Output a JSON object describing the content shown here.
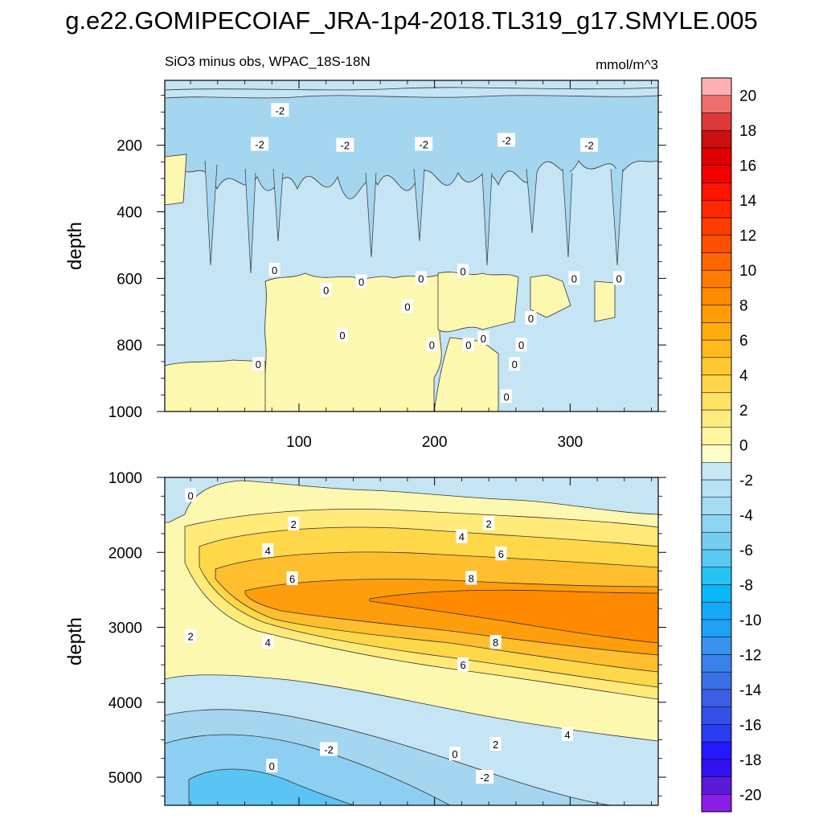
{
  "figure": {
    "title": "g.e22.GOMIPECOIAF_JRA-1p4-2018.TL319_g17.SMYLE.005",
    "left_subtitle": "SiO3 minus obs, WPAC_18S-18N",
    "right_subtitle": "mmol/m^3"
  },
  "chart_data": [
    {
      "type": "heatmap",
      "panel": "upper",
      "title": "SiO3 minus obs, WPAC_18S-18N",
      "units": "mmol/m^3",
      "xlabel": "",
      "ylabel": "depth",
      "xlim": [
        1,
        365
      ],
      "ylim": [
        1000,
        5
      ],
      "y_inverted": true,
      "xticks": [
        100,
        200,
        300
      ],
      "yticks": [
        200,
        400,
        600,
        800,
        1000
      ],
      "colors": {
        "zero_band": "#fdf8b0",
        "neg2_band": "#c5e4f4",
        "neg4_band": "#a5d6ef"
      },
      "contour_labels": [
        {
          "text": "-2",
          "x": 86,
          "y": 95
        },
        {
          "text": "-2",
          "x": 71,
          "y": 197
        },
        {
          "text": "-2",
          "x": 134,
          "y": 200
        },
        {
          "text": "-2",
          "x": 192,
          "y": 197
        },
        {
          "text": "-2",
          "x": 253,
          "y": 185
        },
        {
          "text": "-2",
          "x": 314,
          "y": 200
        },
        {
          "text": "0",
          "x": 82,
          "y": 575
        },
        {
          "text": "0",
          "x": 120,
          "y": 635
        },
        {
          "text": "0",
          "x": 146,
          "y": 610
        },
        {
          "text": "0",
          "x": 190,
          "y": 600
        },
        {
          "text": "0",
          "x": 221,
          "y": 578
        },
        {
          "text": "0",
          "x": 303,
          "y": 600
        },
        {
          "text": "0",
          "x": 336,
          "y": 600
        },
        {
          "text": "0",
          "x": 180,
          "y": 685
        },
        {
          "text": "0",
          "x": 271,
          "y": 720
        },
        {
          "text": "0",
          "x": 132,
          "y": 770
        },
        {
          "text": "0",
          "x": 198,
          "y": 800
        },
        {
          "text": "0",
          "x": 225,
          "y": 800
        },
        {
          "text": "0",
          "x": 236,
          "y": 780
        },
        {
          "text": "0",
          "x": 264,
          "y": 800
        },
        {
          "text": "0",
          "x": 70,
          "y": 858
        },
        {
          "text": "0",
          "x": 259,
          "y": 858
        },
        {
          "text": "0",
          "x": 253,
          "y": 955
        }
      ]
    },
    {
      "type": "heatmap",
      "panel": "lower",
      "xlabel": "",
      "ylabel": "depth",
      "xlim": [
        1,
        365
      ],
      "ylim": [
        5375,
        1000
      ],
      "y_inverted": true,
      "xticks": [
        100,
        200,
        300
      ],
      "yticks": [
        1000,
        2000,
        3000,
        4000,
        5000
      ],
      "max_anomaly": 9.3,
      "max_anomaly_depth": 2700,
      "contour_labels": [
        {
          "text": "0",
          "x": 20,
          "y": 1240
        },
        {
          "text": "2",
          "x": 96,
          "y": 1620
        },
        {
          "text": "2",
          "x": 240,
          "y": 1615
        },
        {
          "text": "4",
          "x": 77,
          "y": 1975
        },
        {
          "text": "4",
          "x": 220,
          "y": 1790
        },
        {
          "text": "6",
          "x": 95,
          "y": 2350
        },
        {
          "text": "6",
          "x": 249,
          "y": 2020
        },
        {
          "text": "8",
          "x": 227,
          "y": 2345
        },
        {
          "text": "8",
          "x": 245,
          "y": 3200
        },
        {
          "text": "2",
          "x": 20,
          "y": 3120
        },
        {
          "text": "4",
          "x": 77,
          "y": 3200
        },
        {
          "text": "6",
          "x": 221,
          "y": 3500
        },
        {
          "text": "0",
          "x": 80,
          "y": 4850
        },
        {
          "text": "-2",
          "x": 122,
          "y": 4630
        },
        {
          "text": "0",
          "x": 215,
          "y": 4690
        },
        {
          "text": "2",
          "x": 245,
          "y": 4560
        },
        {
          "text": "4",
          "x": 298,
          "y": 4430
        },
        {
          "text": "-2",
          "x": 237,
          "y": 5000
        }
      ]
    },
    {
      "type": "colorbar",
      "levels": [
        -21,
        -20,
        -19,
        -18,
        -17,
        -16,
        -15,
        -14,
        -13,
        -12,
        -11,
        -10,
        -9,
        -8,
        -7,
        -6,
        -5,
        -4,
        -3,
        -2,
        -1,
        0,
        1,
        2,
        3,
        4,
        5,
        6,
        7,
        8,
        9,
        10,
        11,
        12,
        13,
        14,
        15,
        16,
        17,
        18,
        19,
        20,
        21
      ],
      "colors": [
        "#8b1ee6",
        "#5b19d9",
        "#3311ee",
        "#2519ff",
        "#2b3cf2",
        "#3550e8",
        "#3d5ee3",
        "#3a70e6",
        "#3a82ea",
        "#3a92ee",
        "#1ea0f4",
        "#14a8f8",
        "#0ab8f8",
        "#28c2f5",
        "#5ac9f4",
        "#75cef2",
        "#8dd5f3",
        "#a5dcf2",
        "#b5e2f4",
        "#c5e8f5",
        "#fffec8",
        "#fff59e",
        "#ffeb80",
        "#ffe166",
        "#ffd54a",
        "#ffc832",
        "#ffbb1e",
        "#ffac0e",
        "#ff9c06",
        "#ff8c00",
        "#ff7a00",
        "#ff6600",
        "#ff5000",
        "#ff3c00",
        "#ff2800",
        "#ff1400",
        "#f20000",
        "#e00000",
        "#cc0f0f",
        "#dc3a3a",
        "#ee6e6e",
        "#fcb0b0"
      ],
      "tick_labels": [
        "20",
        "18",
        "16",
        "14",
        "12",
        "10",
        "8",
        "6",
        "4",
        "2",
        "0",
        "-2",
        "-4",
        "-6",
        "-8",
        "-10",
        "-12",
        "-14",
        "-16",
        "-18",
        "-20"
      ],
      "tick_values": [
        20,
        18,
        16,
        14,
        12,
        10,
        8,
        6,
        4,
        2,
        0,
        -2,
        -4,
        -6,
        -8,
        -10,
        -12,
        -14,
        -16,
        -18,
        -20
      ],
      "range": [
        -21,
        21
      ]
    }
  ]
}
